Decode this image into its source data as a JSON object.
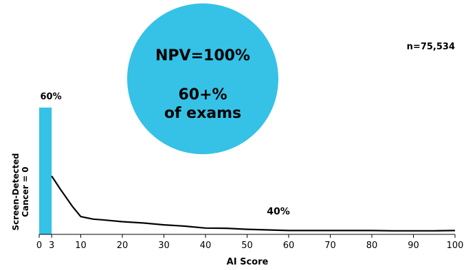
{
  "chart_data": {
    "type": "line",
    "title": "",
    "xlabel": "AI Score",
    "ylabel_lines": [
      "Screen-Detected",
      "Cancer = 0"
    ],
    "xlim": [
      0,
      100
    ],
    "ylim": [
      0,
      1
    ],
    "x_ticks": [
      "0",
      "3",
      "10",
      "20",
      "30",
      "40",
      "50",
      "60",
      "70",
      "80",
      "90",
      "100"
    ],
    "sample_size": "n=75,534",
    "bar": {
      "x_range": [
        0,
        3
      ],
      "value": 1.0,
      "label": "60%",
      "color": "#35C2E6"
    },
    "series": [
      {
        "x": [
          3,
          5,
          8,
          10,
          13,
          15,
          20,
          25,
          30,
          35,
          40,
          45,
          50,
          55,
          60,
          65,
          70,
          75,
          80,
          85,
          90,
          95,
          100
        ],
        "y": [
          0.46,
          0.36,
          0.22,
          0.14,
          0.12,
          0.115,
          0.1,
          0.09,
          0.075,
          0.065,
          0.05,
          0.048,
          0.04,
          0.035,
          0.03,
          0.03,
          0.03,
          0.03,
          0.03,
          0.028,
          0.028,
          0.028,
          0.03
        ],
        "color": "#000000"
      }
    ],
    "region_label": "40%",
    "callout": {
      "line1": "NPV=100%",
      "line2": "60+%",
      "line3": "of exams",
      "color": "#35C2E6"
    }
  }
}
